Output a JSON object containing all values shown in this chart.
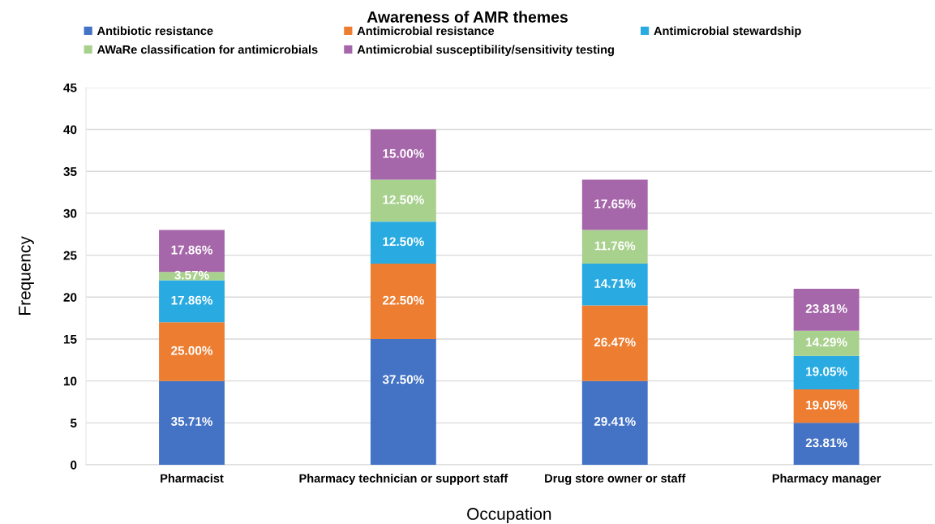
{
  "chart_data": {
    "type": "bar",
    "title": "Awareness of AMR themes",
    "xlabel": "Occupation",
    "ylabel": "Frequency",
    "categories": [
      "Pharmacist",
      "Pharmacy technician or support staff",
      "Drug store owner or staff",
      "Pharmacy manager"
    ],
    "stacked": true,
    "series": [
      {
        "name": "Antibiotic resistance",
        "color": "#4472c4",
        "values": [
          10,
          15,
          10,
          5
        ]
      },
      {
        "name": "Antimicrobial resistance",
        "color": "#ed7d31",
        "values": [
          7,
          9,
          9,
          4
        ]
      },
      {
        "name": "Antimicrobial stewardship",
        "color": "#29abe2",
        "values": [
          5,
          5,
          5,
          4
        ]
      },
      {
        "name": "AWaRe classification for antimicrobials",
        "color": "#a9d18e",
        "values": [
          1,
          5,
          4,
          3
        ]
      },
      {
        "name": "Antimicrobial susceptibility/sensitivity testing",
        "color": "#a666aa",
        "values": [
          5,
          6,
          6,
          5
        ]
      }
    ],
    "annotations": [
      {
        "text": "35.71%",
        "x": "Pharmacist",
        "y": 10
      },
      {
        "text": "37.50%",
        "x": "Pharmacy technician or support staff",
        "y": 15
      },
      {
        "text": "29.41%",
        "x": "Drug store owner or staff",
        "y": 10
      },
      {
        "text": "23.81%",
        "x": "Pharmacy manager",
        "y": 5
      },
      {
        "text": "25.00%",
        "x": "Pharmacist",
        "y": 17
      },
      {
        "text": "22.50%",
        "x": "Pharmacy technician or support staff",
        "y": 24
      },
      {
        "text": "26.47%",
        "x": "Drug store owner or staff",
        "y": 19
      },
      {
        "text": "19.05%",
        "x": "Pharmacy manager",
        "y": 9
      },
      {
        "text": "17.86%",
        "x": "Pharmacist",
        "y": 22
      },
      {
        "text": "12.50%",
        "x": "Pharmacy technician or support staff",
        "y": 29
      },
      {
        "text": "14.71%",
        "x": "Drug store owner or staff",
        "y": 24
      },
      {
        "text": "19.05%",
        "x": "Pharmacy manager",
        "y": 13
      },
      {
        "text": "3.57%",
        "x": "Pharmacist",
        "y": 23
      },
      {
        "text": "12.50%",
        "x": "Pharmacy technician or support staff",
        "y": 34
      },
      {
        "text": "11.76%",
        "x": "Drug store owner or staff",
        "y": 28
      },
      {
        "text": "14.29%",
        "x": "Pharmacy manager",
        "y": 16
      },
      {
        "text": "17.86%",
        "x": "Pharmacist",
        "y": 28
      },
      {
        "text": "15.00%",
        "x": "Pharmacy technician or support staff",
        "y": 40
      },
      {
        "text": "17.65%",
        "x": "Drug store owner or staff",
        "y": 34
      },
      {
        "text": "23.81%",
        "x": "Pharmacy manager",
        "y": 21
      }
    ],
    "ylim": [
      0,
      45
    ],
    "yticks": [
      0,
      5,
      10,
      15,
      20,
      25,
      30,
      35,
      40,
      45
    ],
    "grid": "y",
    "legend": "top"
  }
}
